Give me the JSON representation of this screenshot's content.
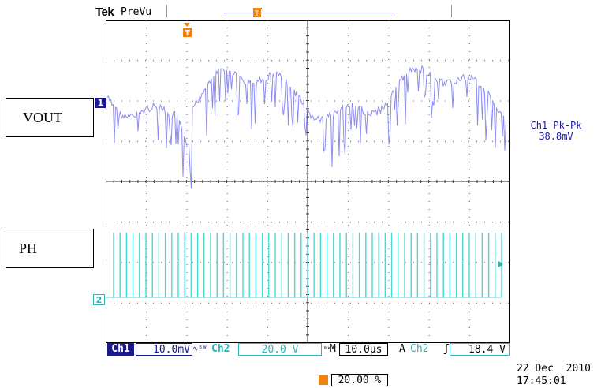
{
  "header": {
    "brand": "Tek",
    "mode": "PreVu"
  },
  "labels": {
    "vout": "VOUT",
    "ph": "PH"
  },
  "markers": {
    "ch1": "1",
    "ch2": "2",
    "trigger": "T"
  },
  "measurement": {
    "name": "Ch1 Pk-Pk",
    "value": "38.8mV"
  },
  "status": {
    "ch1_tag": "Ch1",
    "ch1_scale": "10.0mV",
    "ch1_coupling": "∿ᴮᵂ",
    "ch2_tag": "Ch2",
    "ch2_scale": "20.0 V",
    "bw": "ᴮᵂ",
    "time_tag": "M",
    "time_scale": "10.0μs",
    "acq": "A",
    "trig_source": "Ch2",
    "trig_slope": "ʃ",
    "trig_level": "18.4 V",
    "trigger_position": "20.00 %"
  },
  "datetime": {
    "date": "22 Dec  2010",
    "time": "17:45:01"
  },
  "colors": {
    "ch1": "#8c8cf0",
    "ch2": "#4dd6d6",
    "trigger": "#f0820f",
    "grid": "#000000"
  }
}
